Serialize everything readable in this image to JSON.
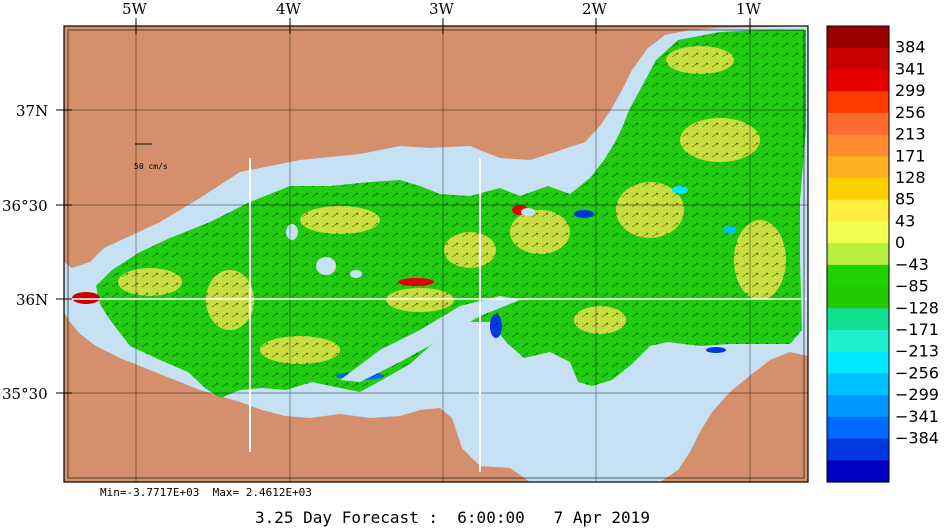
{
  "map": {
    "longitude_labels": [
      "5W",
      "4W",
      "3W",
      "2W",
      "1W"
    ],
    "latitude_labels": [
      "37N",
      "36°30",
      "36N",
      "35°30"
    ],
    "scale_label": "50 cm/s"
  },
  "colorbar": {
    "labels": [
      "384",
      "341",
      "299",
      "256",
      "213",
      "171",
      "128",
      "85",
      "43",
      "0",
      "−43",
      "−85",
      "−128",
      "−171",
      "−213",
      "−256",
      "−299",
      "−341",
      "−384"
    ],
    "colors": [
      "#9a0000",
      "#c80000",
      "#e80000",
      "#ff3a00",
      "#ff6a30",
      "#ff8c30",
      "#ffb020",
      "#ffd000",
      "#ffee40",
      "#f0ff50",
      "#b8f040",
      "#1ed200",
      "#22c800",
      "#10e090",
      "#20f0d0",
      "#00e8ff",
      "#00c0ff",
      "#0096ff",
      "#006aff",
      "#0038e0",
      "#0000c0"
    ]
  },
  "stats": {
    "min_label": "Min=-3.7717E+03",
    "max_label": "Max= 2.4612E+03"
  },
  "footer": {
    "forecast": "3.25 Day Forecast :  6:00:00   7 Apr 2019"
  },
  "palette": {
    "land": "#d4906c",
    "water": "#c6e0f4",
    "field_green": "#22cc11",
    "field_yellow": "#e6e048"
  }
}
